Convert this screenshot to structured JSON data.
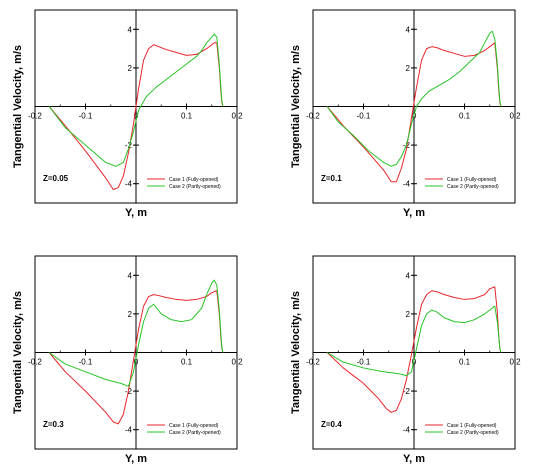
{
  "colors": {
    "case1": "#e8262b",
    "case2": "#27c427",
    "axis": "#000000",
    "frame": "#000000"
  },
  "chart_data": [
    {
      "type": "line",
      "xlabel": "Y, m",
      "ylabel": "Tangential Velocity, m/s",
      "annotation": "Z=0.05",
      "xlim": [
        -0.2,
        0.2
      ],
      "ylim": [
        -5,
        5
      ],
      "xticks": [
        -0.2,
        -0.1,
        0,
        0.1,
        0.2
      ],
      "xtick_labels": [
        "-0.2",
        "-0.1",
        "0",
        "0.1",
        "0.2"
      ],
      "yticks": [
        -4,
        -2,
        2,
        4
      ],
      "ytick_labels": [
        "-4",
        "-2",
        "2",
        "4"
      ],
      "legend_position": "bottom-right",
      "series": [
        {
          "name": "Case 1 (Fully-opened)",
          "color_key": "case1",
          "x": [
            -0.172,
            -0.14,
            -0.1,
            -0.06,
            -0.045,
            -0.035,
            -0.025,
            -0.015,
            -0.005,
            0.005,
            0.015,
            0.025,
            0.035,
            0.045,
            0.06,
            0.08,
            0.1,
            0.12,
            0.14,
            0.15,
            0.155,
            0.16,
            0.165,
            0.168,
            0.17,
            0.172
          ],
          "y": [
            0,
            -1.0,
            -2.3,
            -3.7,
            -4.3,
            -4.2,
            -3.6,
            -2.4,
            -0.9,
            0.9,
            2.4,
            3.0,
            3.2,
            3.1,
            2.95,
            2.8,
            2.65,
            2.7,
            3.0,
            3.2,
            3.3,
            3.3,
            2.0,
            0.8,
            0.2,
            0
          ]
        },
        {
          "name": "Case 2 (Partly-opened)",
          "color_key": "case2",
          "x": [
            -0.172,
            -0.14,
            -0.1,
            -0.06,
            -0.04,
            -0.025,
            -0.015,
            -0.005,
            0.005,
            0.02,
            0.04,
            0.06,
            0.08,
            0.1,
            0.12,
            0.13,
            0.14,
            0.15,
            0.155,
            0.16,
            0.165,
            0.168,
            0.17,
            0.172
          ],
          "y": [
            0,
            -1.1,
            -2.0,
            -2.9,
            -3.1,
            -2.9,
            -2.2,
            -1.3,
            -0.2,
            0.5,
            1.0,
            1.4,
            1.8,
            2.2,
            2.6,
            2.9,
            3.3,
            3.6,
            3.75,
            3.6,
            2.2,
            1.0,
            0.3,
            0
          ]
        }
      ]
    },
    {
      "type": "line",
      "xlabel": "Y, m",
      "ylabel": "Tangential Velocity, m/s",
      "annotation": "Z=0.1",
      "xlim": [
        -0.2,
        0.2
      ],
      "ylim": [
        -5,
        5
      ],
      "xticks": [
        -0.2,
        -0.1,
        0,
        0.1,
        0.2
      ],
      "xtick_labels": [
        "-0.2",
        "-0.1",
        "0",
        "0.1",
        "0.2"
      ],
      "yticks": [
        -4,
        -2,
        2,
        4
      ],
      "ytick_labels": [
        "-4",
        "-2",
        "2",
        "4"
      ],
      "legend_position": "bottom-right",
      "series": [
        {
          "name": "Case 1 (Fully-opened)",
          "color_key": "case1",
          "x": [
            -0.172,
            -0.14,
            -0.1,
            -0.06,
            -0.045,
            -0.035,
            -0.025,
            -0.015,
            -0.005,
            0.005,
            0.015,
            0.025,
            0.035,
            0.045,
            0.06,
            0.08,
            0.1,
            0.12,
            0.14,
            0.15,
            0.16,
            0.165,
            0.168,
            0.17,
            0.172
          ],
          "y": [
            0,
            -1.0,
            -2.1,
            -3.3,
            -3.9,
            -3.9,
            -3.2,
            -2.2,
            -0.6,
            1.0,
            2.4,
            3.0,
            3.1,
            3.05,
            2.9,
            2.75,
            2.6,
            2.65,
            2.9,
            3.1,
            3.3,
            2.0,
            0.8,
            0.2,
            0
          ]
        },
        {
          "name": "Case 2 (Partly-opened)",
          "color_key": "case2",
          "x": [
            -0.172,
            -0.15,
            -0.12,
            -0.09,
            -0.06,
            -0.045,
            -0.035,
            -0.025,
            -0.015,
            -0.005,
            0.005,
            0.015,
            0.03,
            0.05,
            0.07,
            0.09,
            0.11,
            0.13,
            0.14,
            0.15,
            0.155,
            0.16,
            0.165,
            0.168,
            0.17,
            0.172
          ],
          "y": [
            0,
            -0.8,
            -1.5,
            -2.3,
            -2.9,
            -3.1,
            -3.0,
            -2.6,
            -2.0,
            -0.9,
            0.0,
            0.4,
            0.8,
            1.1,
            1.4,
            1.8,
            2.3,
            2.8,
            3.3,
            3.8,
            3.9,
            3.5,
            2.2,
            1.0,
            0.3,
            0
          ]
        }
      ]
    },
    {
      "type": "line",
      "xlabel": "Y, m",
      "ylabel": "Tangential Velocity, m/s",
      "annotation": "Z=0.3",
      "xlim": [
        -0.2,
        0.2
      ],
      "ylim": [
        -5,
        5
      ],
      "xticks": [
        -0.2,
        -0.1,
        0,
        0.1,
        0.2
      ],
      "xtick_labels": [
        "-0.2",
        "-0.1",
        "0",
        "0.1",
        "0.2"
      ],
      "yticks": [
        -4,
        -2,
        2,
        4
      ],
      "ytick_labels": [
        "-4",
        "-2",
        "2",
        "4"
      ],
      "legend_position": "bottom-right",
      "series": [
        {
          "name": "Case 1 (Fully-opened)",
          "color_key": "case1",
          "x": [
            -0.172,
            -0.14,
            -0.1,
            -0.06,
            -0.045,
            -0.035,
            -0.025,
            -0.015,
            -0.005,
            0.005,
            0.015,
            0.025,
            0.035,
            0.045,
            0.06,
            0.08,
            0.1,
            0.12,
            0.14,
            0.15,
            0.16,
            0.165,
            0.168,
            0.17,
            0.172
          ],
          "y": [
            0,
            -1.0,
            -2.0,
            -3.1,
            -3.6,
            -3.7,
            -3.2,
            -2.0,
            -0.4,
            1.2,
            2.4,
            2.9,
            3.0,
            2.95,
            2.85,
            2.75,
            2.7,
            2.75,
            2.9,
            3.1,
            3.2,
            2.0,
            0.8,
            0.2,
            0
          ]
        },
        {
          "name": "Case 2 (Partly-opened)",
          "color_key": "case2",
          "x": [
            -0.172,
            -0.14,
            -0.1,
            -0.06,
            -0.03,
            -0.015,
            -0.005,
            0.005,
            0.015,
            0.025,
            0.035,
            0.05,
            0.07,
            0.09,
            0.11,
            0.13,
            0.14,
            0.15,
            0.155,
            0.16,
            0.165,
            0.168,
            0.17,
            0.172
          ],
          "y": [
            0,
            -0.6,
            -1.0,
            -1.4,
            -1.6,
            -1.75,
            -1.0,
            0.4,
            1.6,
            2.3,
            2.5,
            2.0,
            1.7,
            1.6,
            1.7,
            2.3,
            3.0,
            3.6,
            3.75,
            3.5,
            2.2,
            1.0,
            0.3,
            0
          ]
        }
      ]
    },
    {
      "type": "line",
      "xlabel": "Y, m",
      "ylabel": "Tangential Velocity, m/s",
      "annotation": "Z=0.4",
      "xlim": [
        -0.2,
        0.2
      ],
      "ylim": [
        -5,
        5
      ],
      "xticks": [
        -0.2,
        -0.1,
        0,
        0.1,
        0.2
      ],
      "xtick_labels": [
        "-0.2",
        "-0.1",
        "0",
        "0.1",
        "0.2"
      ],
      "yticks": [
        -4,
        -2,
        2,
        4
      ],
      "ytick_labels": [
        "-4",
        "-2",
        "2",
        "4"
      ],
      "legend_position": "bottom-right",
      "series": [
        {
          "name": "Case 1 (Fully-opened)",
          "color_key": "case1",
          "x": [
            -0.172,
            -0.14,
            -0.1,
            -0.07,
            -0.055,
            -0.045,
            -0.035,
            -0.025,
            -0.015,
            -0.005,
            0.005,
            0.015,
            0.025,
            0.035,
            0.045,
            0.06,
            0.08,
            0.1,
            0.12,
            0.14,
            0.15,
            0.16,
            0.165,
            0.168,
            0.17,
            0.172
          ],
          "y": [
            0,
            -0.8,
            -1.6,
            -2.4,
            -2.9,
            -3.1,
            -3.0,
            -2.4,
            -1.4,
            -0.1,
            1.3,
            2.5,
            3.0,
            3.2,
            3.15,
            3.0,
            2.85,
            2.75,
            2.8,
            3.0,
            3.3,
            3.4,
            2.1,
            0.8,
            0.2,
            0
          ]
        },
        {
          "name": "Case 2 (Partly-opened)",
          "color_key": "case2",
          "x": [
            -0.172,
            -0.14,
            -0.1,
            -0.06,
            -0.03,
            -0.015,
            -0.005,
            0.005,
            0.015,
            0.025,
            0.035,
            0.045,
            0.06,
            0.08,
            0.1,
            0.12,
            0.14,
            0.155,
            0.16,
            0.165,
            0.168,
            0.17,
            0.172
          ],
          "y": [
            0,
            -0.5,
            -0.8,
            -1.0,
            -1.1,
            -1.2,
            -1.0,
            0.2,
            1.4,
            2.0,
            2.2,
            2.1,
            1.8,
            1.6,
            1.55,
            1.7,
            2.0,
            2.3,
            2.4,
            1.6,
            0.8,
            0.2,
            0
          ]
        }
      ]
    }
  ]
}
